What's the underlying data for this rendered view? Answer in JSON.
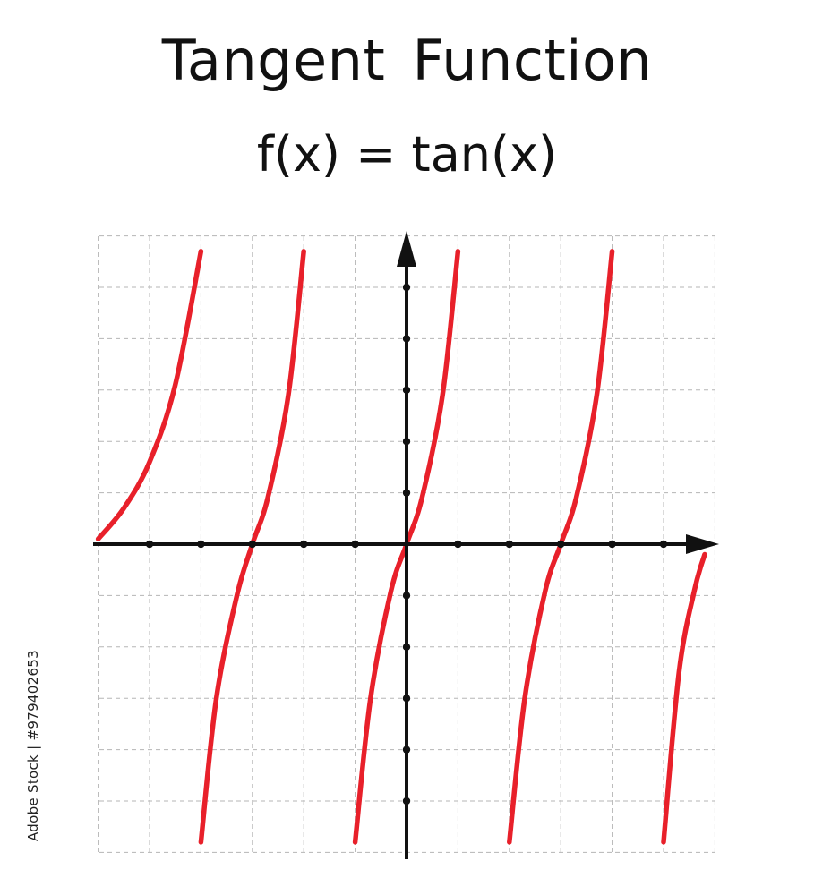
{
  "header": {
    "title": "Tangent  Function",
    "formula": "f(x) = tan(x)"
  },
  "watermark": {
    "text": "Adobe Stock | #979402653"
  },
  "chart_data": {
    "type": "line",
    "title": "Tangent  Function",
    "subtitle": "f(x) = tan(x)",
    "function": "tan(x)",
    "xlabel": "",
    "ylabel": "",
    "xlim": [
      -6,
      6
    ],
    "ylim": [
      -6,
      6
    ],
    "grid": true,
    "axis_arrows": [
      "x-positive",
      "y-positive"
    ],
    "tick_labels": false,
    "series": [
      {
        "branch": 1,
        "points": [
          {
            "x": -6.0,
            "y": 0.1
          },
          {
            "x": -5.5,
            "y": 0.7
          },
          {
            "x": -5.0,
            "y": 1.6
          },
          {
            "x": -4.5,
            "y": 3.1
          },
          {
            "x": -4.0,
            "y": 5.7
          }
        ]
      },
      {
        "branch": 2,
        "points": [
          {
            "x": -4.0,
            "y": -5.8
          },
          {
            "x": -3.7,
            "y": -3.0
          },
          {
            "x": -3.3,
            "y": -1.0
          },
          {
            "x": -3.0,
            "y": 0.0
          },
          {
            "x": -2.7,
            "y": 0.9
          },
          {
            "x": -2.3,
            "y": 2.9
          },
          {
            "x": -2.0,
            "y": 5.7
          }
        ]
      },
      {
        "branch": 3,
        "points": [
          {
            "x": -1.0,
            "y": -5.8
          },
          {
            "x": -0.7,
            "y": -3.0
          },
          {
            "x": -0.3,
            "y": -0.9
          },
          {
            "x": 0.0,
            "y": 0.0
          },
          {
            "x": 0.3,
            "y": 0.9
          },
          {
            "x": 0.7,
            "y": 2.9
          },
          {
            "x": 1.0,
            "y": 5.7
          }
        ]
      },
      {
        "branch": 4,
        "points": [
          {
            "x": 2.0,
            "y": -5.8
          },
          {
            "x": 2.3,
            "y": -3.0
          },
          {
            "x": 2.7,
            "y": -0.9
          },
          {
            "x": 3.0,
            "y": 0.0
          },
          {
            "x": 3.3,
            "y": 0.9
          },
          {
            "x": 3.7,
            "y": 2.9
          },
          {
            "x": 4.0,
            "y": 5.7
          }
        ]
      },
      {
        "branch": 5,
        "points": [
          {
            "x": 5.0,
            "y": -5.8
          },
          {
            "x": 5.3,
            "y": -2.5
          },
          {
            "x": 5.6,
            "y": -0.9
          },
          {
            "x": 5.8,
            "y": -0.2
          }
        ]
      }
    ],
    "colors": {
      "curve": "#e8202a",
      "axis": "#111111",
      "grid": "#b5b5b5",
      "text": "#111111"
    }
  }
}
